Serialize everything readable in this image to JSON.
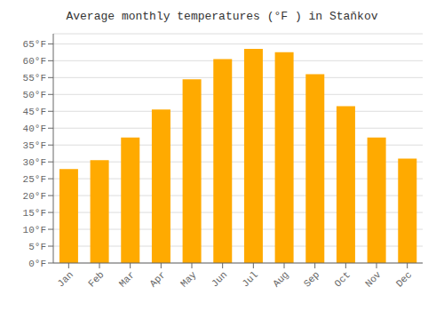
{
  "chart_data": {
    "type": "bar",
    "title": "Average monthly temperatures (°F ) in Staňkov",
    "categories": [
      "Jan",
      "Feb",
      "Mar",
      "Apr",
      "May",
      "Jun",
      "Jul",
      "Aug",
      "Sep",
      "Oct",
      "Nov",
      "Dec"
    ],
    "values": [
      27.9,
      30.5,
      37.2,
      45.5,
      54.5,
      60.5,
      63.5,
      62.5,
      56.0,
      46.5,
      37.2,
      31.0
    ],
    "color": "#FFAA00",
    "ylim": [
      0,
      68
    ],
    "yticks": [
      {
        "value": 0,
        "label": "0°F"
      },
      {
        "value": 5,
        "label": "5°F"
      },
      {
        "value": 10,
        "label": "10°F"
      },
      {
        "value": 15,
        "label": "15°F"
      },
      {
        "value": 20,
        "label": "20°F"
      },
      {
        "value": 25,
        "label": "25°F"
      },
      {
        "value": 30,
        "label": "30°F"
      },
      {
        "value": 35,
        "label": "35°F"
      },
      {
        "value": 40,
        "label": "40°F"
      },
      {
        "value": 45,
        "label": "45°F"
      },
      {
        "value": 50,
        "label": "50°F"
      },
      {
        "value": 55,
        "label": "55°F"
      },
      {
        "value": 60,
        "label": "60°F"
      },
      {
        "value": 65,
        "label": "65°F"
      }
    ],
    "grid": true
  }
}
